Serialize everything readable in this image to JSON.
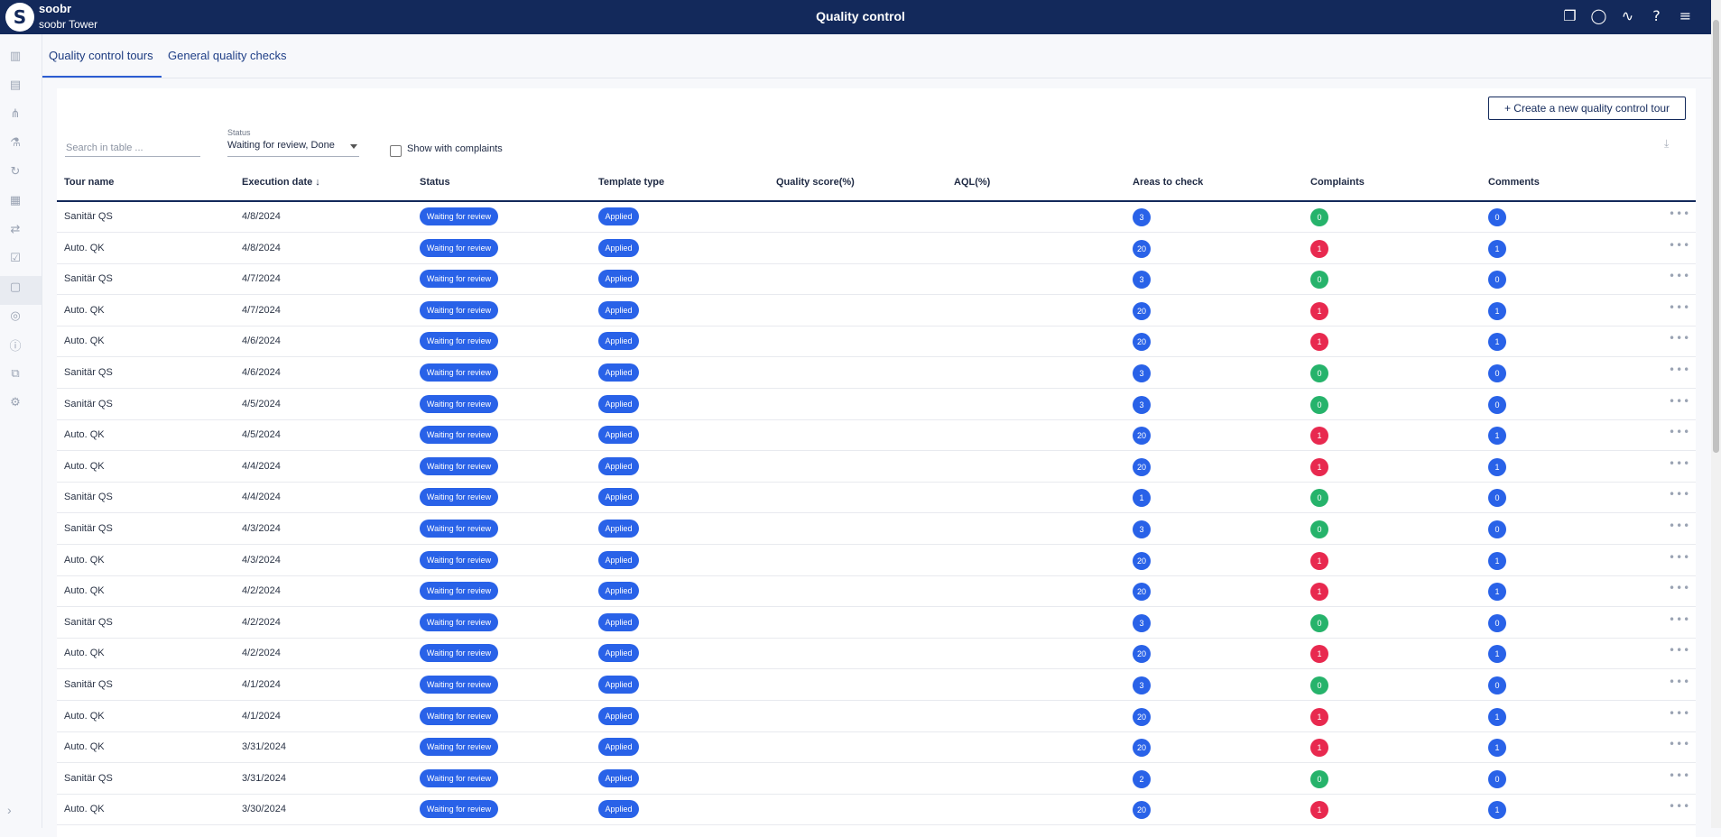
{
  "app": {
    "brand": "soobr",
    "sub": "soobr Tower",
    "title": "Quality control"
  },
  "tabs": [
    {
      "label": "Quality control tours"
    },
    {
      "label": "General quality checks"
    }
  ],
  "toolbar": {
    "create_label": "+ Create a new quality control tour",
    "search_placeholder": "Search in table ...",
    "status_label": "Status",
    "status_value": "Waiting for review, Done",
    "complaints_label": "Show with complaints"
  },
  "columns": [
    "Tour name",
    "Execution date ↓",
    "Status",
    "Template type",
    "Quality score(%)",
    "AQL(%)",
    "Areas to check",
    "Complaints",
    "Comments"
  ],
  "rows": [
    {
      "name": "Sanitär QS",
      "date": "4/8/2024",
      "status": "Waiting for review",
      "template": "Applied",
      "areas": "3",
      "complaints": "0",
      "comments": "0"
    },
    {
      "name": "Auto. QK",
      "date": "4/8/2024",
      "status": "Waiting for review",
      "template": "Applied",
      "areas": "20",
      "complaints": "1",
      "comments": "1"
    },
    {
      "name": "Sanitär QS",
      "date": "4/7/2024",
      "status": "Waiting for review",
      "template": "Applied",
      "areas": "3",
      "complaints": "0",
      "comments": "0"
    },
    {
      "name": "Auto. QK",
      "date": "4/7/2024",
      "status": "Waiting for review",
      "template": "Applied",
      "areas": "20",
      "complaints": "1",
      "comments": "1"
    },
    {
      "name": "Auto. QK",
      "date": "4/6/2024",
      "status": "Waiting for review",
      "template": "Applied",
      "areas": "20",
      "complaints": "1",
      "comments": "1"
    },
    {
      "name": "Sanitär QS",
      "date": "4/6/2024",
      "status": "Waiting for review",
      "template": "Applied",
      "areas": "3",
      "complaints": "0",
      "comments": "0"
    },
    {
      "name": "Sanitär QS",
      "date": "4/5/2024",
      "status": "Waiting for review",
      "template": "Applied",
      "areas": "3",
      "complaints": "0",
      "comments": "0"
    },
    {
      "name": "Auto. QK",
      "date": "4/5/2024",
      "status": "Waiting for review",
      "template": "Applied",
      "areas": "20",
      "complaints": "1",
      "comments": "1"
    },
    {
      "name": "Auto. QK",
      "date": "4/4/2024",
      "status": "Waiting for review",
      "template": "Applied",
      "areas": "20",
      "complaints": "1",
      "comments": "1"
    },
    {
      "name": "Sanitär QS",
      "date": "4/4/2024",
      "status": "Waiting for review",
      "template": "Applied",
      "areas": "1",
      "complaints": "0",
      "comments": "0"
    },
    {
      "name": "Sanitär QS",
      "date": "4/3/2024",
      "status": "Waiting for review",
      "template": "Applied",
      "areas": "3",
      "complaints": "0",
      "comments": "0"
    },
    {
      "name": "Auto. QK",
      "date": "4/3/2024",
      "status": "Waiting for review",
      "template": "Applied",
      "areas": "20",
      "complaints": "1",
      "comments": "1"
    },
    {
      "name": "Auto. QK",
      "date": "4/2/2024",
      "status": "Waiting for review",
      "template": "Applied",
      "areas": "20",
      "complaints": "1",
      "comments": "1"
    },
    {
      "name": "Sanitär QS",
      "date": "4/2/2024",
      "status": "Waiting for review",
      "template": "Applied",
      "areas": "3",
      "complaints": "0",
      "comments": "0"
    },
    {
      "name": "Auto. QK",
      "date": "4/2/2024",
      "status": "Waiting for review",
      "template": "Applied",
      "areas": "20",
      "complaints": "1",
      "comments": "1"
    },
    {
      "name": "Sanitär QS",
      "date": "4/1/2024",
      "status": "Waiting for review",
      "template": "Applied",
      "areas": "3",
      "complaints": "0",
      "comments": "0"
    },
    {
      "name": "Auto. QK",
      "date": "4/1/2024",
      "status": "Waiting for review",
      "template": "Applied",
      "areas": "20",
      "complaints": "1",
      "comments": "1"
    },
    {
      "name": "Auto. QK",
      "date": "3/31/2024",
      "status": "Waiting for review",
      "template": "Applied",
      "areas": "20",
      "complaints": "1",
      "comments": "1"
    },
    {
      "name": "Sanitär QS",
      "date": "3/31/2024",
      "status": "Waiting for review",
      "template": "Applied",
      "areas": "2",
      "complaints": "0",
      "comments": "0"
    },
    {
      "name": "Auto. QK",
      "date": "3/30/2024",
      "status": "Waiting for review",
      "template": "Applied",
      "areas": "20",
      "complaints": "1",
      "comments": "1"
    }
  ],
  "colors": {
    "header": "#13295b",
    "pill": "#2962e8",
    "good": "#26b36b",
    "bad": "#e8294f"
  },
  "icons": {
    "top": [
      "copy-icon",
      "chat-icon",
      "activity-icon",
      "help-icon",
      "menu-icon"
    ],
    "sidebar": [
      "bar-chart-icon",
      "report-icon",
      "hierarchy-icon",
      "flask-icon",
      "sync-icon",
      "calendar-icon",
      "transfer-icon",
      "quality-icon",
      "book-icon",
      "target-icon",
      "info-icon",
      "translate-icon",
      "settings-icon"
    ]
  }
}
